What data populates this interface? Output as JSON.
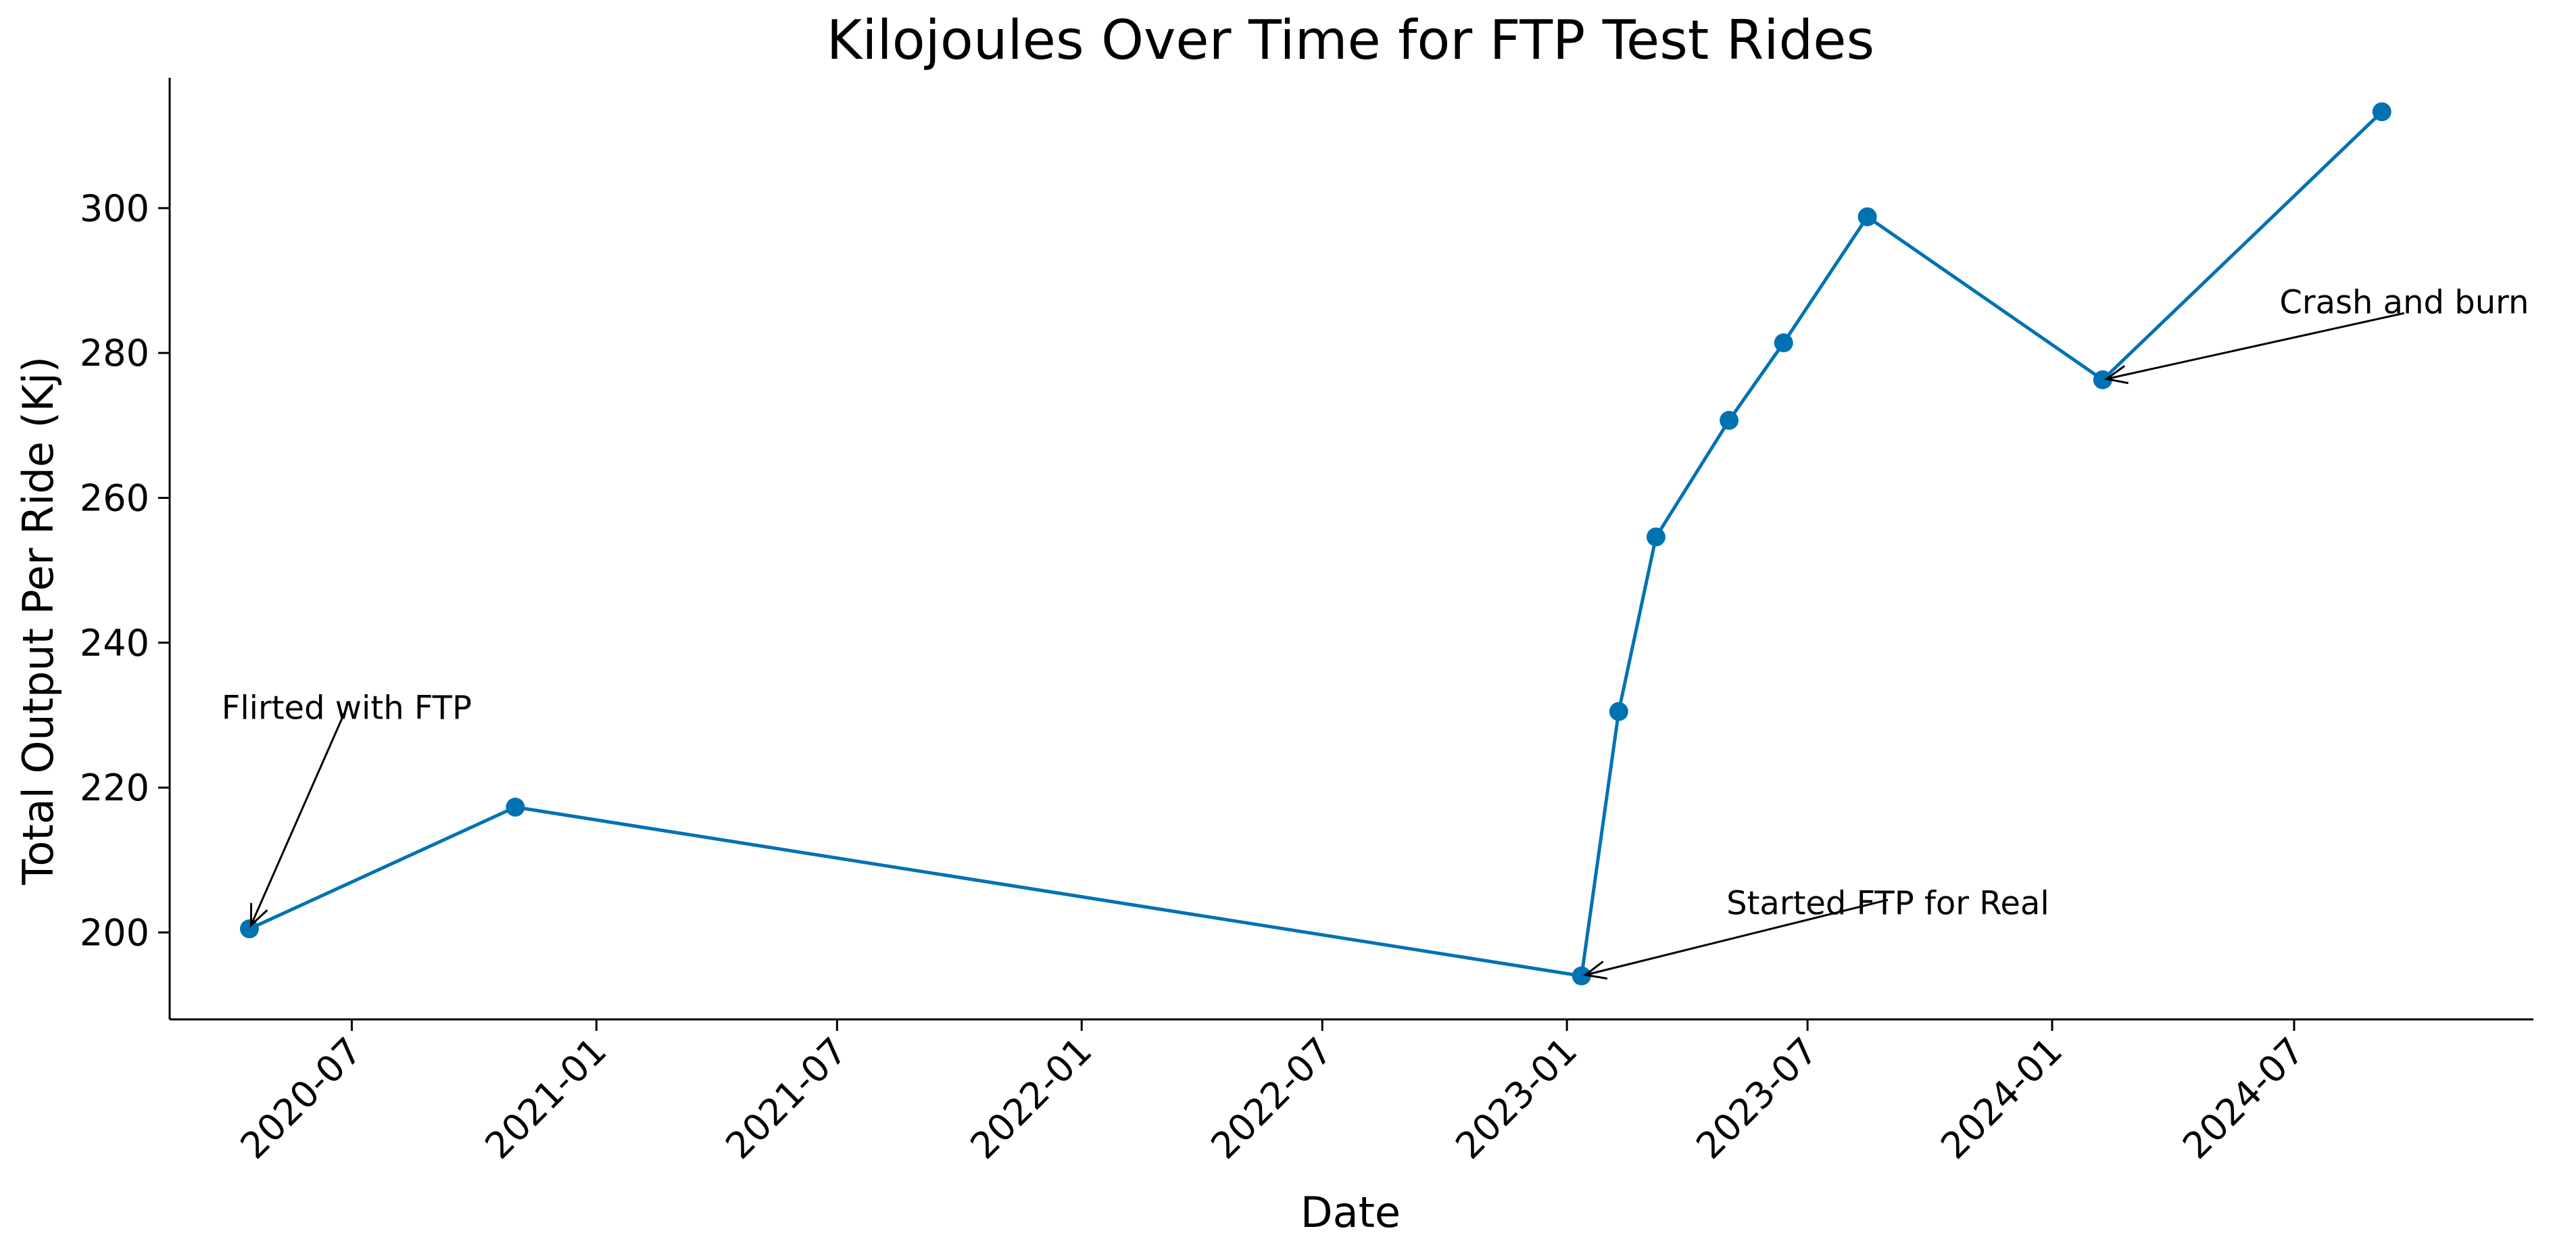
{
  "chart_data": {
    "type": "line",
    "title": "Kilojoules Over Time for FTP Test Rides",
    "xlabel": "Date",
    "ylabel": "Total Output Per Ride (Kj)",
    "x_type": "date",
    "xlim": [
      "2020-02-15",
      "2024-12-28"
    ],
    "ylim": [
      188,
      318
    ],
    "xticks": [
      "2020-07",
      "2021-01",
      "2021-07",
      "2022-01",
      "2022-07",
      "2023-01",
      "2023-07",
      "2024-01",
      "2024-07"
    ],
    "yticks": [
      200,
      220,
      240,
      260,
      280,
      300
    ],
    "grid": false,
    "legend": "none",
    "color": "#0072b2",
    "series": [
      {
        "x": [
          "2020-04-15",
          "2020-11-01",
          "2023-01-12",
          "2023-02-09",
          "2023-03-09",
          "2023-05-03",
          "2023-06-13",
          "2023-08-15",
          "2024-02-08",
          "2024-09-05"
        ],
        "y": [
          200.5,
          217.3,
          194.0,
          230.5,
          254.6,
          270.7,
          281.4,
          298.8,
          276.3,
          313.3
        ]
      }
    ],
    "annotations": [
      {
        "text": "Flirted with FTP",
        "x": "2020-04-15",
        "y": 200.5,
        "text_x": "2020-03-25",
        "text_y": 229.5,
        "arrow_end_y": 231
      },
      {
        "text": "Started FTP for Real",
        "x": "2023-01-12",
        "y": 194.0,
        "text_x": "2023-05-01",
        "text_y": 202.5,
        "arrow_end_y": 204.5
      },
      {
        "text": "Crash and burn",
        "x": "2024-02-08",
        "y": 276.3,
        "text_x": "2024-06-20",
        "text_y": 285.5,
        "arrow_end_y": 285.5
      }
    ]
  }
}
